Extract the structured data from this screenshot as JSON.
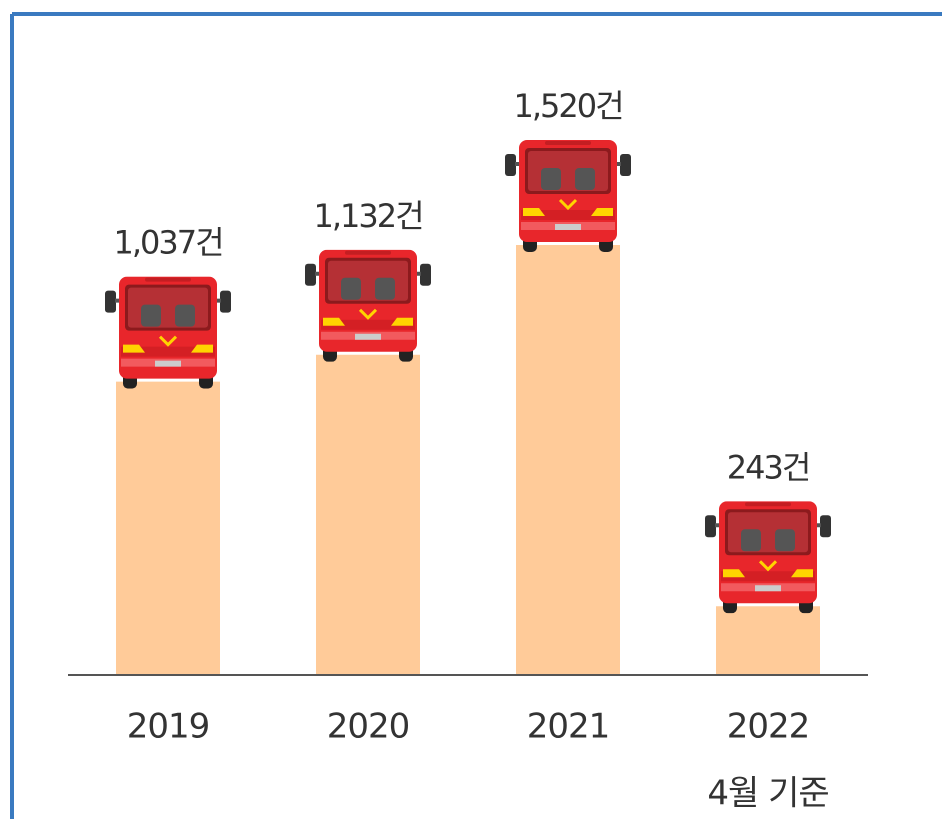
{
  "chart_data": {
    "type": "bar",
    "categories": [
      "2019",
      "2020",
      "2021",
      "2022"
    ],
    "values": [
      1037,
      1132,
      1520,
      243
    ],
    "value_labels": [
      "1,037건",
      "1,132건",
      "1,520건",
      "243건"
    ],
    "annotation": "4월 기준",
    "color": "#ffcb99"
  }
}
